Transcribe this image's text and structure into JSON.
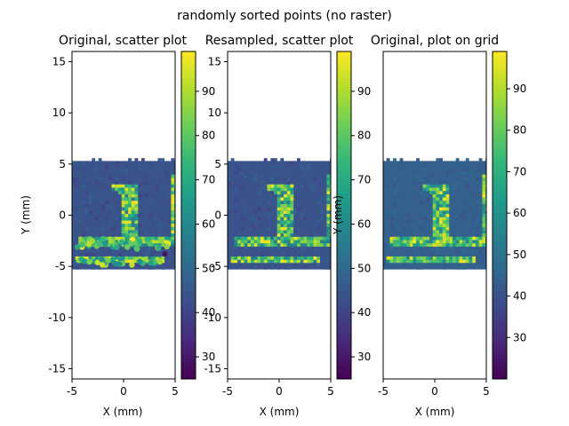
{
  "figure": {
    "suptitle": "randomly sorted points (no raster)"
  },
  "colormap": {
    "name": "viridis",
    "stops": [
      "#440154",
      "#482878",
      "#3e4a89",
      "#31688e",
      "#26828e",
      "#1f9e89",
      "#35b779",
      "#6ece58",
      "#b5de2b",
      "#fde725"
    ]
  },
  "chart_data": [
    {
      "type": "scatter",
      "title": "Original, scatter plot",
      "xlabel": "X (mm)",
      "ylabel": "Y (mm)",
      "xlim": [
        -5,
        5
      ],
      "ylim": [
        -16,
        16
      ],
      "xticks": [
        -5,
        0,
        5
      ],
      "yticks": [
        15,
        10,
        5,
        0,
        -5,
        -10,
        -15
      ],
      "data_extent": {
        "x": [
          -5,
          5
        ],
        "y": [
          -5.3,
          5.3
        ]
      },
      "background_value": 44,
      "pattern": "digit 1 with base bar",
      "colorbar": {
        "range": [
          25,
          99
        ],
        "ticks": [
          30,
          40,
          50,
          60,
          70,
          80,
          90
        ]
      }
    },
    {
      "type": "scatter",
      "title": "Resampled, scatter plot",
      "xlabel": "X (mm)",
      "ylabel": "Y (mm)",
      "xlim": [
        -5,
        5
      ],
      "ylim": [
        -16,
        16
      ],
      "xticks": [
        -5,
        0,
        5
      ],
      "yticks": [
        15,
        10,
        5,
        0,
        -5,
        -10,
        -15
      ],
      "data_extent": {
        "x": [
          -5,
          5
        ],
        "y": [
          -5.3,
          5.3
        ]
      },
      "background_value": 44,
      "pattern": "digit 1 with base bar",
      "colorbar": {
        "range": [
          25,
          99
        ],
        "ticks": [
          30,
          40,
          50,
          60,
          70,
          80,
          90
        ]
      }
    },
    {
      "type": "heatmap",
      "title": "Original, plot on grid",
      "xlabel": "X (mm)",
      "ylabel": "",
      "xlim": [
        -5,
        5
      ],
      "ylim": [
        -16,
        16
      ],
      "xticks": [
        -5,
        0,
        5
      ],
      "yticks": [],
      "data_extent": {
        "x": [
          -5,
          5
        ],
        "y": [
          -5.3,
          5.3
        ]
      },
      "background_value": 44,
      "pattern": "digit 1 with base bar",
      "colorbar": {
        "range": [
          20,
          99
        ],
        "ticks": [
          30,
          40,
          50,
          60,
          70,
          80,
          90
        ]
      }
    }
  ]
}
